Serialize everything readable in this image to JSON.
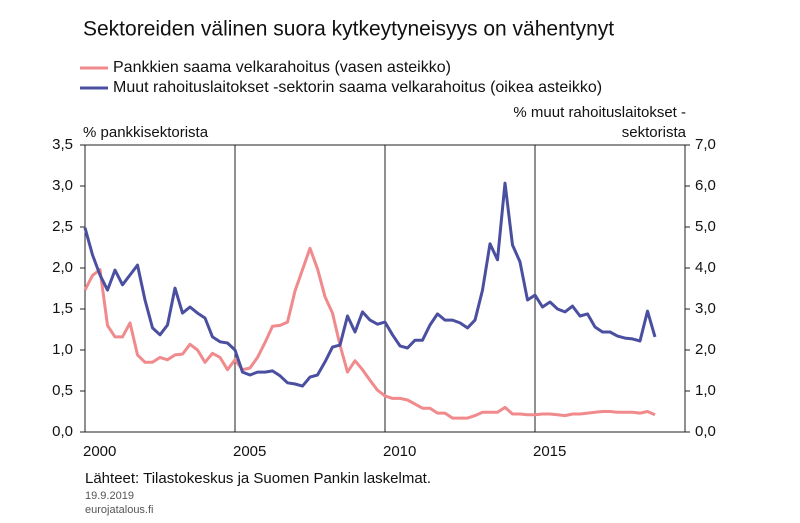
{
  "chart_data": {
    "type": "line",
    "title": "Sektoreiden välinen suora kytkeytyneisyys on vähentynyt",
    "ylabel": "% pankkisektorista",
    "y2label": [
      "% muut rahoituslaitokset -",
      "sektorista"
    ],
    "source": "Lähteet: Tilastokeskus ja Suomen Pankin laskelmat.",
    "date": "19.9.2019",
    "site": "eurojatalous.fi",
    "x": [
      2000,
      2000.25,
      2000.5,
      2000.75,
      2001,
      2001.25,
      2001.5,
      2001.75,
      2002,
      2002.25,
      2002.5,
      2002.75,
      2003,
      2003.25,
      2003.5,
      2003.75,
      2004,
      2004.25,
      2004.5,
      2004.75,
      2005,
      2005.25,
      2005.5,
      2005.75,
      2006,
      2006.25,
      2006.5,
      2006.75,
      2007,
      2007.25,
      2007.5,
      2007.75,
      2008,
      2008.25,
      2008.5,
      2008.75,
      2009,
      2009.25,
      2009.5,
      2009.75,
      2010,
      2010.25,
      2010.5,
      2010.75,
      2011,
      2011.25,
      2011.5,
      2011.75,
      2012,
      2012.25,
      2012.5,
      2012.75,
      2013,
      2013.25,
      2013.5,
      2013.75,
      2014,
      2014.25,
      2014.5,
      2014.75,
      2015,
      2015.25,
      2015.5,
      2015.75,
      2016,
      2016.25,
      2016.5,
      2016.75,
      2017,
      2017.25,
      2017.5,
      2017.75,
      2018,
      2018.25,
      2018.5,
      2018.75,
      2019
    ],
    "series": [
      {
        "name": "Pankkien saama velkarahoitus (vasen asteikko)",
        "color": "#f08a8c",
        "axis": "y",
        "values": [
          1.73,
          1.91,
          1.98,
          1.3,
          1.16,
          1.16,
          1.33,
          0.94,
          0.85,
          0.85,
          0.91,
          0.88,
          0.94,
          0.95,
          1.07,
          1.0,
          0.85,
          0.96,
          0.91,
          0.76,
          0.88,
          0.76,
          0.78,
          0.91,
          1.09,
          1.29,
          1.3,
          1.34,
          1.72,
          1.98,
          2.24,
          1.99,
          1.65,
          1.45,
          1.06,
          0.73,
          0.87,
          0.76,
          0.63,
          0.51,
          0.44,
          0.41,
          0.41,
          0.39,
          0.34,
          0.29,
          0.29,
          0.23,
          0.23,
          0.17,
          0.17,
          0.17,
          0.2,
          0.24,
          0.24,
          0.24,
          0.3,
          0.22,
          0.22,
          0.21,
          0.21,
          0.22,
          0.22,
          0.21,
          0.2,
          0.22,
          0.22,
          0.23,
          0.24,
          0.25,
          0.25,
          0.24,
          0.24,
          0.24,
          0.23,
          0.25,
          0.21
        ]
      },
      {
        "name": "Muut rahoituslaitokset -sektorin saama velkarahoitus (oikea asteikko)",
        "color": "#4a4fa0",
        "axis": "y2",
        "values": [
          4.98,
          4.32,
          3.83,
          3.46,
          3.95,
          3.59,
          3.83,
          4.07,
          3.22,
          2.54,
          2.37,
          2.61,
          3.51,
          2.9,
          3.05,
          2.9,
          2.78,
          2.32,
          2.2,
          2.17,
          2.0,
          1.46,
          1.39,
          1.46,
          1.46,
          1.49,
          1.37,
          1.2,
          1.17,
          1.12,
          1.34,
          1.39,
          1.71,
          2.07,
          2.12,
          2.83,
          2.44,
          2.93,
          2.73,
          2.63,
          2.68,
          2.37,
          2.1,
          2.05,
          2.24,
          2.24,
          2.61,
          2.88,
          2.73,
          2.73,
          2.66,
          2.54,
          2.73,
          3.46,
          4.59,
          4.2,
          6.07,
          4.56,
          4.15,
          3.22,
          3.34,
          3.05,
          3.17,
          3.0,
          2.93,
          3.07,
          2.83,
          2.88,
          2.56,
          2.44,
          2.44,
          2.34,
          2.29,
          2.27,
          2.22,
          2.95,
          2.32
        ]
      }
    ],
    "xlim": [
      2000,
      2020
    ],
    "xticks": [
      2000,
      2005,
      2010,
      2015
    ],
    "ylim": [
      0,
      3.5
    ],
    "yticks": [
      {
        "value": 0,
        "label": "0,0"
      },
      {
        "value": 0.5,
        "label": "0,5"
      },
      {
        "value": 1,
        "label": "1,0"
      },
      {
        "value": 1.5,
        "label": "1,5"
      },
      {
        "value": 2,
        "label": "2,0"
      },
      {
        "value": 2.5,
        "label": "2,5"
      },
      {
        "value": 3,
        "label": "3,0"
      },
      {
        "value": 3.5,
        "label": "3,5"
      }
    ],
    "y2lim": [
      0,
      7
    ],
    "y2ticks": [
      {
        "value": 0,
        "label": "0,0"
      },
      {
        "value": 1,
        "label": "1,0"
      },
      {
        "value": 2,
        "label": "2,0"
      },
      {
        "value": 3,
        "label": "3,0"
      },
      {
        "value": 4,
        "label": "4,0"
      },
      {
        "value": 5,
        "label": "5,0"
      },
      {
        "value": 6,
        "label": "6,0"
      },
      {
        "value": 7,
        "label": "7,0"
      }
    ],
    "xgrid": true
  }
}
